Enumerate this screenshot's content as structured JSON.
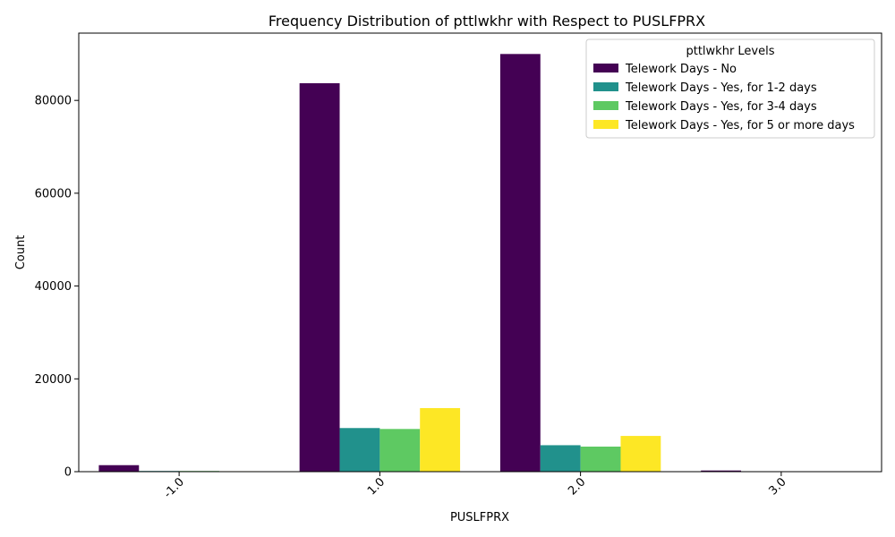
{
  "chart_data": {
    "type": "bar",
    "title": "Frequency Distribution of pttlwkhr with Respect to PUSLFPRX",
    "xlabel": "PUSLFPRX",
    "ylabel": "Count",
    "categories": [
      "-1.0",
      "1.0",
      "2.0",
      "3.0"
    ],
    "ylim": [
      0,
      94500
    ],
    "yticks": [
      0,
      20000,
      40000,
      60000,
      80000
    ],
    "legend_title": "pttlwkhr Levels",
    "legend_position": "top-right",
    "grid": false,
    "series": [
      {
        "name": "Telework Days - No",
        "color": "#440154",
        "values": [
          1400,
          83700,
          90000,
          250
        ]
      },
      {
        "name": "Telework Days - Yes, for 1-2 days",
        "color": "#21918c",
        "values": [
          150,
          9400,
          5700,
          0
        ]
      },
      {
        "name": "Telework Days - Yes, for 3-4 days",
        "color": "#5ec962",
        "values": [
          150,
          9200,
          5400,
          0
        ]
      },
      {
        "name": "Telework Days - Yes, for 5 or more days",
        "color": "#fde725",
        "values": [
          100,
          13700,
          7700,
          0
        ]
      }
    ]
  }
}
